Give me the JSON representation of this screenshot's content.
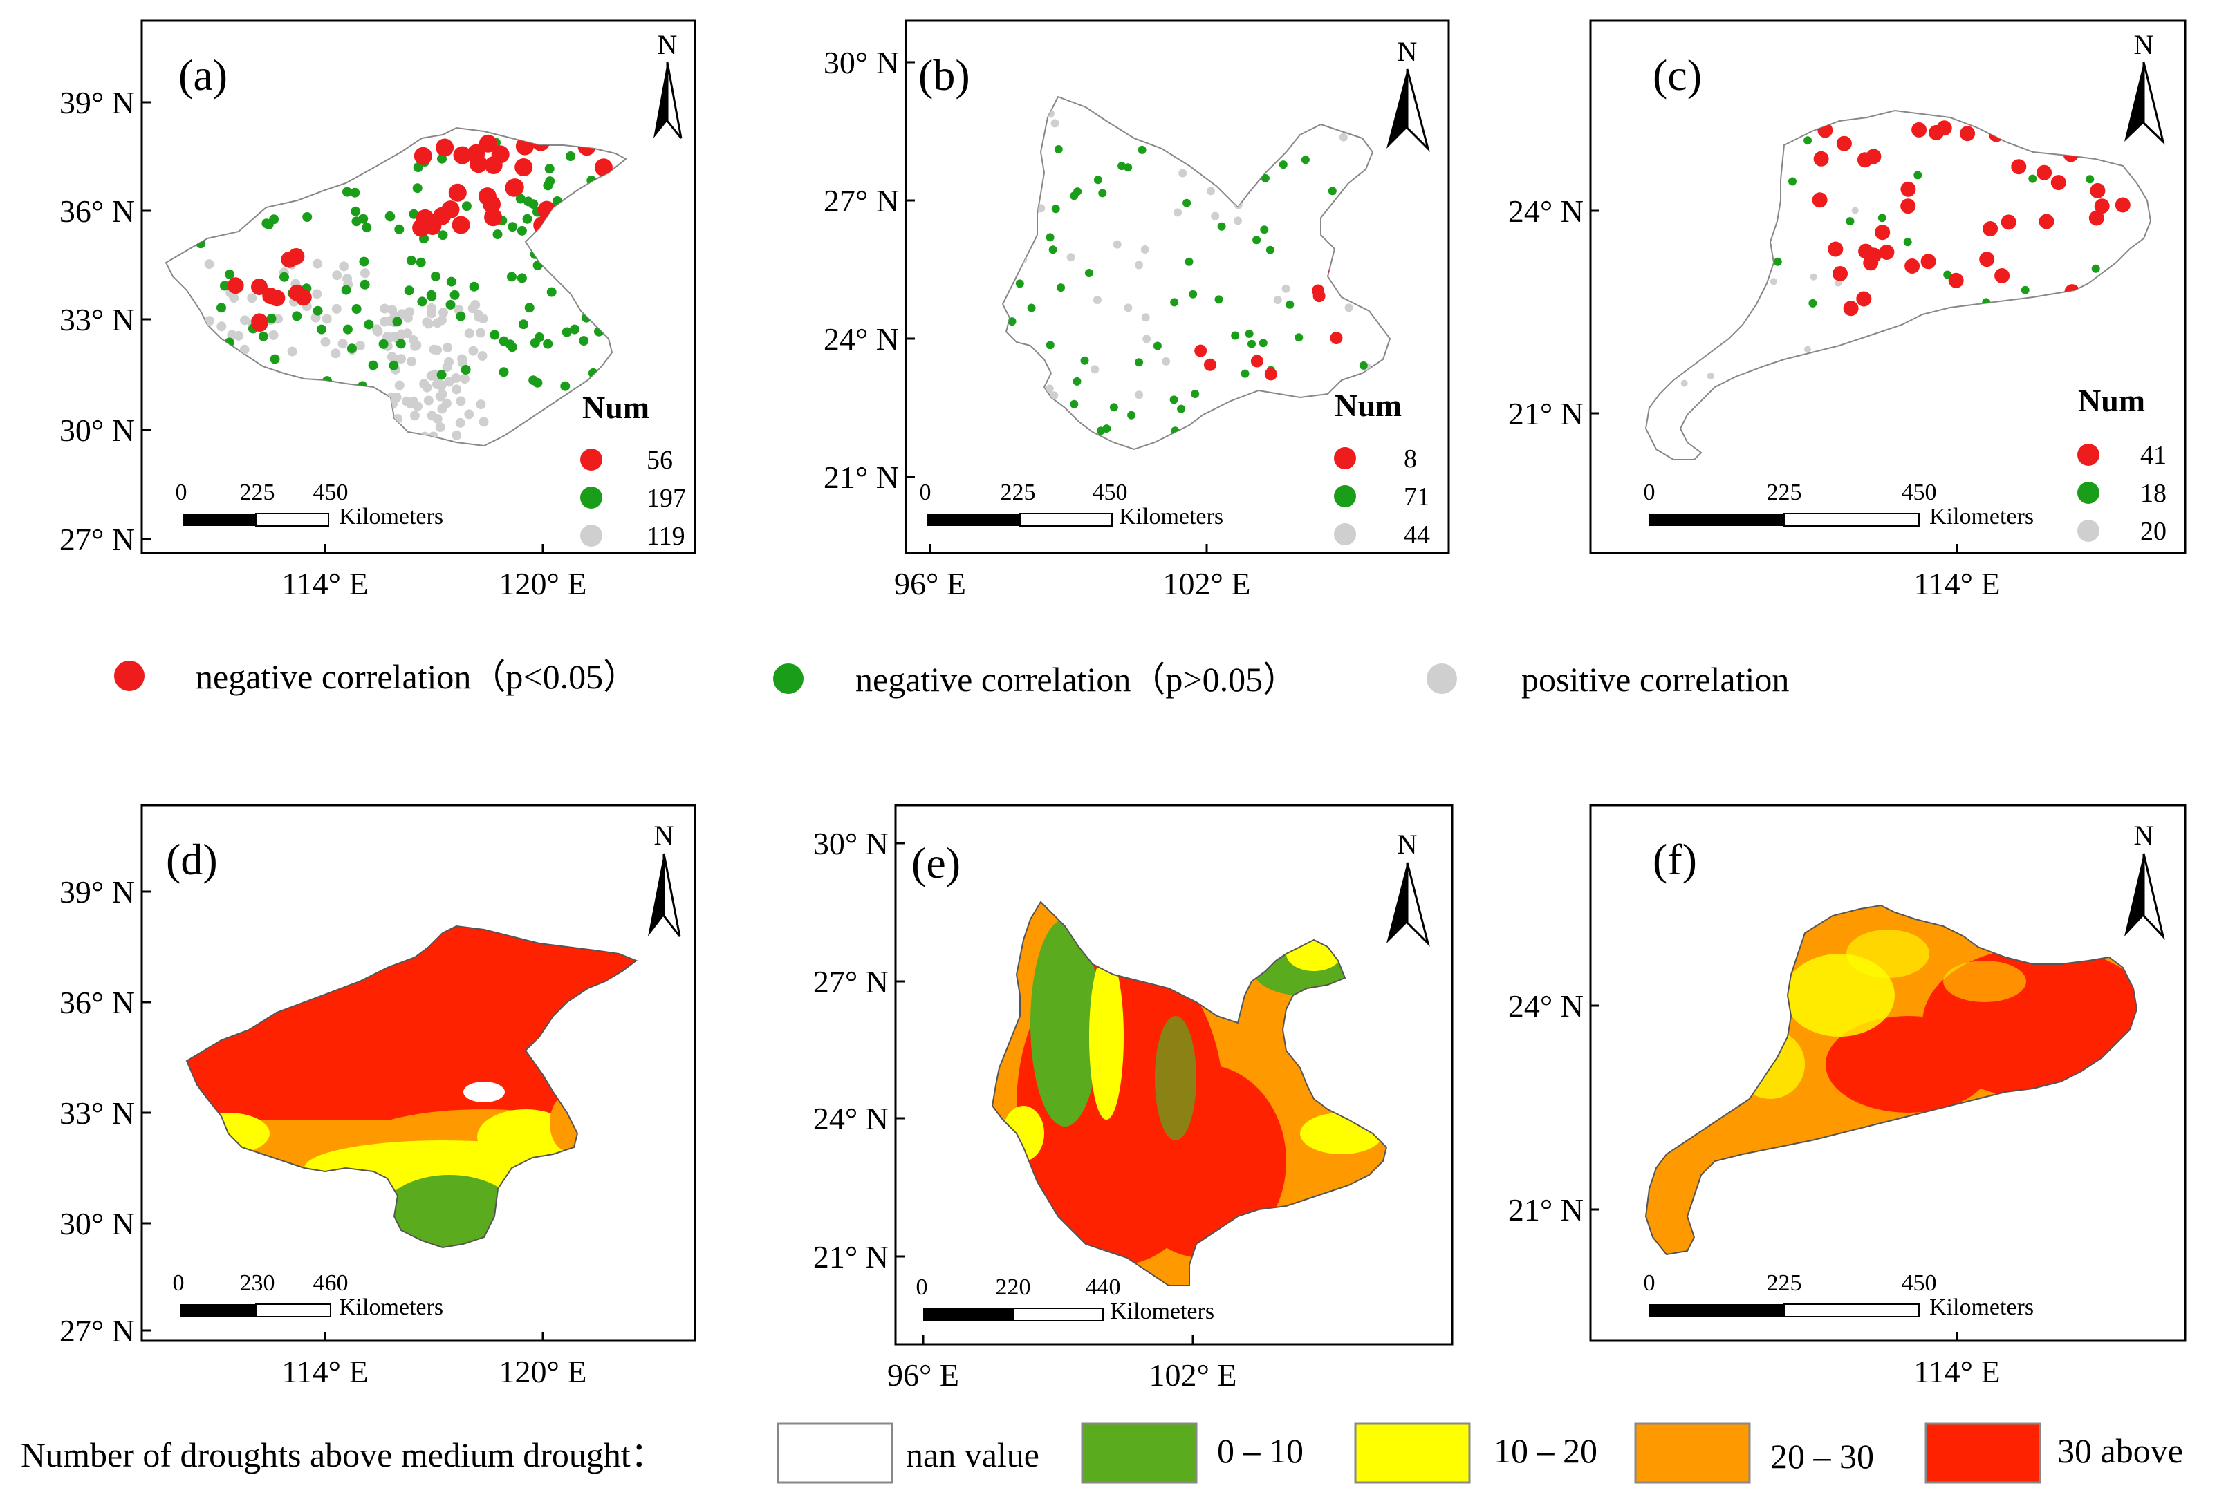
{
  "colors": {
    "red": "#ee1c1c",
    "green": "#1a9e1a",
    "gray": "#cfcfcf",
    "class_nan": "#ffffff",
    "class_0_10": "#5aab1e",
    "class_10_20": "#ffff00",
    "class_20_30": "#ff9900",
    "class_30_above": "#ff2200"
  },
  "panels": [
    {
      "letter": "(a)",
      "lat_labels": [
        "39° N",
        "36° N",
        "33° N",
        "30° N",
        "27° N"
      ],
      "lon_labels": [
        "114° E",
        "120° E"
      ],
      "north": "N",
      "num_title": "Num",
      "counts": [
        "56",
        "197",
        "119"
      ],
      "scale": [
        "0",
        "225",
        "450"
      ],
      "scale_unit": "Kilometers"
    },
    {
      "letter": "(b)",
      "lat_labels": [
        "30° N",
        "27° N",
        "24° N",
        "21° N"
      ],
      "lon_labels": [
        "96° E",
        "102° E"
      ],
      "north": "N",
      "num_title": "Num",
      "counts": [
        "8",
        "71",
        "44"
      ],
      "scale": [
        "0",
        "225",
        "450"
      ],
      "scale_unit": "Kilometers"
    },
    {
      "letter": "(c)",
      "lat_labels": [
        "24° N",
        "21° N"
      ],
      "lon_labels": [
        "114° E"
      ],
      "north": "N",
      "num_title": "Num",
      "counts": [
        "41",
        "18",
        "20"
      ],
      "scale": [
        "0",
        "225",
        "450"
      ],
      "scale_unit": "Kilometers"
    },
    {
      "letter": "(d)",
      "lat_labels": [
        "39° N",
        "36° N",
        "33° N",
        "30° N",
        "27° N"
      ],
      "lon_labels": [
        "114° E",
        "120° E"
      ],
      "north": "N",
      "scale": [
        "0",
        "230",
        "460"
      ],
      "scale_unit": "Kilometers"
    },
    {
      "letter": "(e)",
      "lat_labels": [
        "30° N",
        "27° N",
        "24° N",
        "21° N"
      ],
      "lon_labels": [
        "96° E",
        "102° E"
      ],
      "north": "N",
      "scale": [
        "0",
        "220",
        "440"
      ],
      "scale_unit": "Kilometers"
    },
    {
      "letter": "(f)",
      "lat_labels": [
        "24° N",
        "21° N"
      ],
      "lon_labels": [
        "114° E"
      ],
      "north": "N",
      "scale": [
        "0",
        "225",
        "450"
      ],
      "scale_unit": "Kilometers"
    }
  ],
  "legend_top": [
    "negative correlation（p<0.05）",
    "negative correlation（p>0.05）",
    "positive correlation"
  ],
  "legend_bottom": {
    "title": "Number of droughts above medium drought：",
    "classes": [
      "nan value",
      "0 – 10",
      "10 – 20",
      "20 – 30",
      "30 above"
    ]
  }
}
